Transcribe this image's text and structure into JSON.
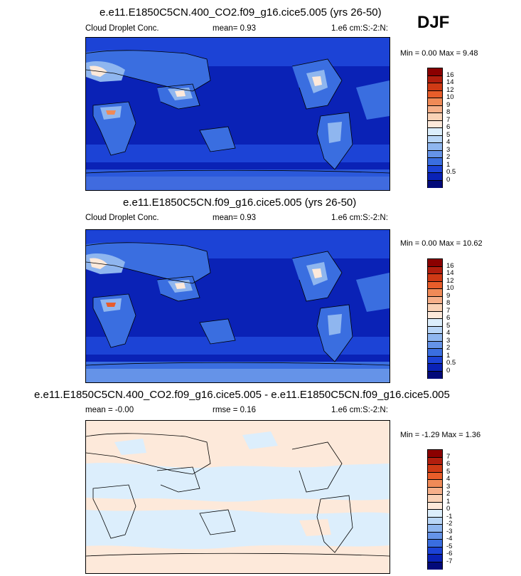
{
  "season": "DJF",
  "panels": [
    {
      "title": "e.e11.E1850C5CN.400_CO2.f09_g16.cice5.005 (yrs 26-50)",
      "variable": "Cloud Droplet Conc.",
      "stat": "mean=   0.93",
      "units": "1.e6 cm:S:-2:N:",
      "minmax": "Min =   0.00 Max =   9.48",
      "colorbar_labels": [
        "16",
        "14",
        "12",
        "10",
        "9",
        "8",
        "7",
        "6",
        "5",
        "4",
        "3",
        "2",
        "1",
        "0.5",
        "0"
      ],
      "colors": [
        "#8b0000",
        "#b21e0e",
        "#cf3a15",
        "#e85d2a",
        "#f08a57",
        "#f6b08a",
        "#f9d2b6",
        "#fde9da",
        "#dceefc",
        "#b9d6f7",
        "#8fb6ef",
        "#6593e8",
        "#3a6ee0",
        "#1c43d6",
        "#0a22b6",
        "#020a7a"
      ]
    },
    {
      "title": "e.e11.E1850C5CN.f09_g16.cice5.005 (yrs 26-50)",
      "variable": "Cloud Droplet Conc.",
      "stat": "mean=   0.93",
      "units": "1.e6 cm:S:-2:N:",
      "minmax": "Min =   0.00 Max =  10.62",
      "colorbar_labels": [
        "16",
        "14",
        "12",
        "10",
        "9",
        "8",
        "7",
        "6",
        "5",
        "4",
        "3",
        "2",
        "1",
        "0.5",
        "0"
      ],
      "colors": [
        "#8b0000",
        "#b21e0e",
        "#cf3a15",
        "#e85d2a",
        "#f08a57",
        "#f6b08a",
        "#f9d2b6",
        "#fde9da",
        "#dceefc",
        "#b9d6f7",
        "#8fb6ef",
        "#6593e8",
        "#3a6ee0",
        "#1c43d6",
        "#0a22b6",
        "#020a7a"
      ]
    },
    {
      "title": "e.e11.E1850C5CN.400_CO2.f09_g16.cice5.005 - e.e11.E1850C5CN.f09_g16.cice5.005",
      "variable": "mean =  -0.00",
      "stat": "rmse =   0.16",
      "units": "1.e6 cm:S:-2:N:",
      "minmax": "Min =  -1.29 Max =   1.36",
      "colorbar_labels": [
        "7",
        "6",
        "5",
        "4",
        "3",
        "2",
        "1",
        "0",
        "-1",
        "-2",
        "-3",
        "-4",
        "-5",
        "-6",
        "-7"
      ],
      "colors": [
        "#8b0000",
        "#b21e0e",
        "#cf3a15",
        "#e85d2a",
        "#f08a57",
        "#f6b08a",
        "#f9d2b6",
        "#fde9da",
        "#dceefc",
        "#b9d6f7",
        "#8fb6ef",
        "#6593e8",
        "#3a6ee0",
        "#1c43d6",
        "#0a22b6",
        "#020a7a"
      ]
    }
  ]
}
